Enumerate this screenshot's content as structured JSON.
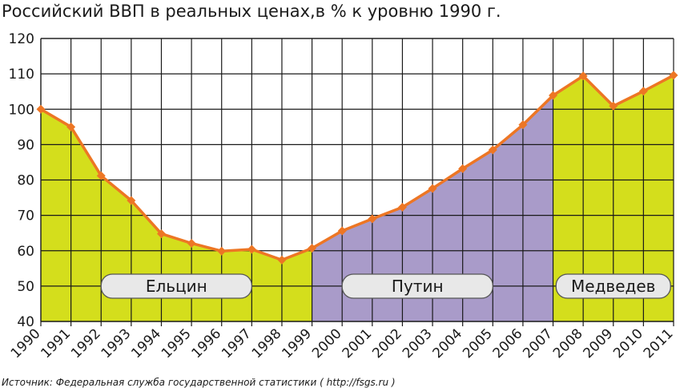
{
  "chart_data": {
    "type": "area",
    "title": "Российский ВВП в реальных ценах,в % к уровню 1990 г.",
    "source": "Источник:  Федеральная служба государственной статистики ( http://fsgs.ru )",
    "xlabel": "",
    "ylabel": "",
    "ylim": [
      40,
      120
    ],
    "yticks": [
      40,
      50,
      60,
      70,
      80,
      90,
      100,
      110,
      120
    ],
    "grid": true,
    "x": [
      1990,
      1991,
      1992,
      1993,
      1994,
      1995,
      1996,
      1997,
      1998,
      1999,
      2000,
      2001,
      2002,
      2003,
      2004,
      2005,
      2006,
      2007,
      2008,
      2009,
      2010,
      2011
    ],
    "series": [
      {
        "values": [
          100,
          95,
          81.2,
          74.2,
          64.8,
          62.1,
          59.9,
          60.4,
          57.4,
          60.7,
          65.6,
          69,
          72.3,
          77.6,
          83.2,
          88.5,
          95.6,
          103.9,
          109.4,
          100.9,
          105.1,
          109.6
        ]
      }
    ],
    "periods": [
      {
        "label": "Ельцин",
        "start": 1990,
        "end": 1999,
        "color": "#d4de1c"
      },
      {
        "label": "Путин",
        "start": 1999,
        "end": 2007,
        "color": "#a99bc9"
      },
      {
        "label": "Медведев",
        "start": 2007,
        "end": 2011,
        "color": "#d4de1c"
      }
    ],
    "line_color": "#ed7624",
    "marker_color": "#ed7624",
    "period_label_fill": "#e8e8e8",
    "grid_color": "#1a1a1a"
  }
}
